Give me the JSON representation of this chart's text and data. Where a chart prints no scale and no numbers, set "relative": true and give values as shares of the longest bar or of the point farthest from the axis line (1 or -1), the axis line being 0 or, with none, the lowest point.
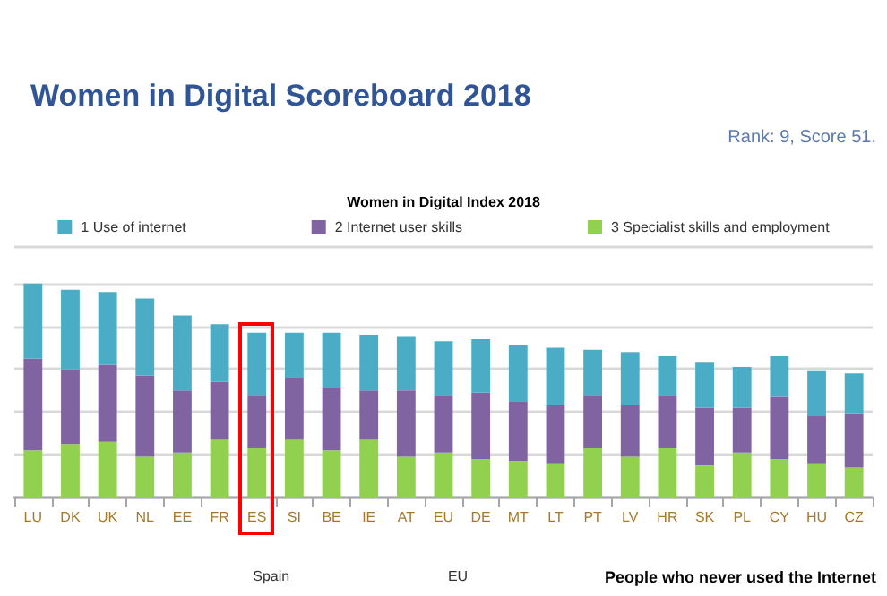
{
  "chart_data": {
    "type": "bar",
    "title": "Women in Digital Scoreboard 2018",
    "subtitle": "Women in Digital Index 2018",
    "categories": [
      "LU",
      "DK",
      "UK",
      "NL",
      "EE",
      "FR",
      "ES",
      "SI",
      "BE",
      "IE",
      "AT",
      "EU",
      "DE",
      "MT",
      "LT",
      "PT",
      "LV",
      "HR",
      "SK",
      "PL",
      "CY",
      "HU",
      "CZ"
    ],
    "stacked": true,
    "relative": true,
    "grid": "y",
    "legend": "top",
    "series": [
      {
        "name": "3 Specialist skills and employment",
        "color": "#92d050",
        "values": [
          0.22,
          0.25,
          0.26,
          0.19,
          0.21,
          0.27,
          0.23,
          0.27,
          0.22,
          0.27,
          0.19,
          0.21,
          0.18,
          0.17,
          0.16,
          0.23,
          0.19,
          0.23,
          0.15,
          0.21,
          0.18,
          0.16,
          0.14
        ]
      },
      {
        "name": "2 Internet user skills",
        "color": "#8064a2",
        "values": [
          0.43,
          0.35,
          0.36,
          0.38,
          0.29,
          0.27,
          0.25,
          0.29,
          0.29,
          0.23,
          0.31,
          0.27,
          0.31,
          0.28,
          0.27,
          0.25,
          0.24,
          0.25,
          0.27,
          0.21,
          0.29,
          0.22,
          0.25
        ]
      },
      {
        "name": "1 Use of internet",
        "color": "#4bacc6",
        "values": [
          0.35,
          0.37,
          0.34,
          0.36,
          0.35,
          0.27,
          0.29,
          0.21,
          0.26,
          0.26,
          0.25,
          0.25,
          0.25,
          0.26,
          0.27,
          0.21,
          0.25,
          0.18,
          0.21,
          0.19,
          0.19,
          0.21,
          0.19
        ]
      }
    ],
    "annotations": [
      "Rank: 9, Score 51.",
      "Spain",
      "EU",
      "People who never used the Internet"
    ]
  }
}
